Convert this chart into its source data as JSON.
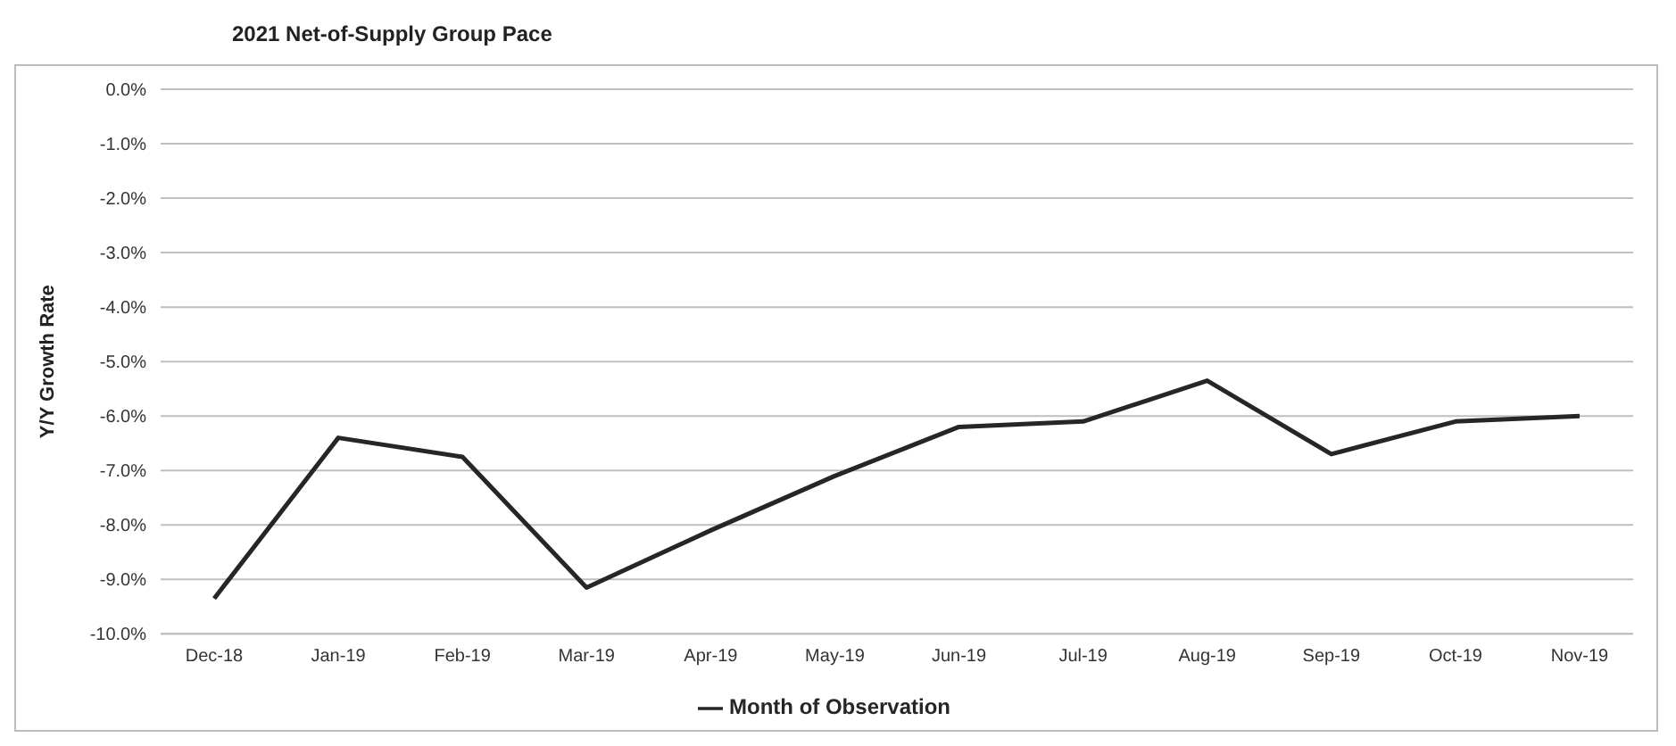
{
  "chart_data": {
    "type": "line",
    "title": "2021 Net-of-Supply Group Pace",
    "ylabel": "Y/Y Growth Rate",
    "categories": [
      "Dec-18",
      "Jan-19",
      "Feb-19",
      "Mar-19",
      "Apr-19",
      "May-19",
      "Jun-19",
      "Jul-19",
      "Aug-19",
      "Sep-19",
      "Oct-19",
      "Nov-19"
    ],
    "series": [
      {
        "name": "Month of Observation",
        "color": "#262626",
        "values": [
          -9.35,
          -6.4,
          -6.75,
          -9.15,
          -8.1,
          -7.1,
          -6.2,
          -6.1,
          -5.35,
          -6.7,
          -6.1,
          -6.0
        ]
      }
    ],
    "ylim": [
      -10,
      0
    ],
    "yticks": [
      {
        "value": -10,
        "label": "-10.0%"
      },
      {
        "value": -9,
        "label": "-9.0%"
      },
      {
        "value": -8,
        "label": "-8.0%"
      },
      {
        "value": -7,
        "label": "-7.0%"
      },
      {
        "value": -6,
        "label": "-6.0%"
      },
      {
        "value": -5,
        "label": "-5.0%"
      },
      {
        "value": -4,
        "label": "-4.0%"
      },
      {
        "value": -3,
        "label": "-3.0%"
      },
      {
        "value": -2,
        "label": "-2.0%"
      },
      {
        "value": -1,
        "label": "-1.0%"
      },
      {
        "value": 0,
        "label": "0.0%"
      }
    ],
    "grid": "y",
    "legend": "bottom",
    "marker": "none",
    "line_style": "solid"
  }
}
